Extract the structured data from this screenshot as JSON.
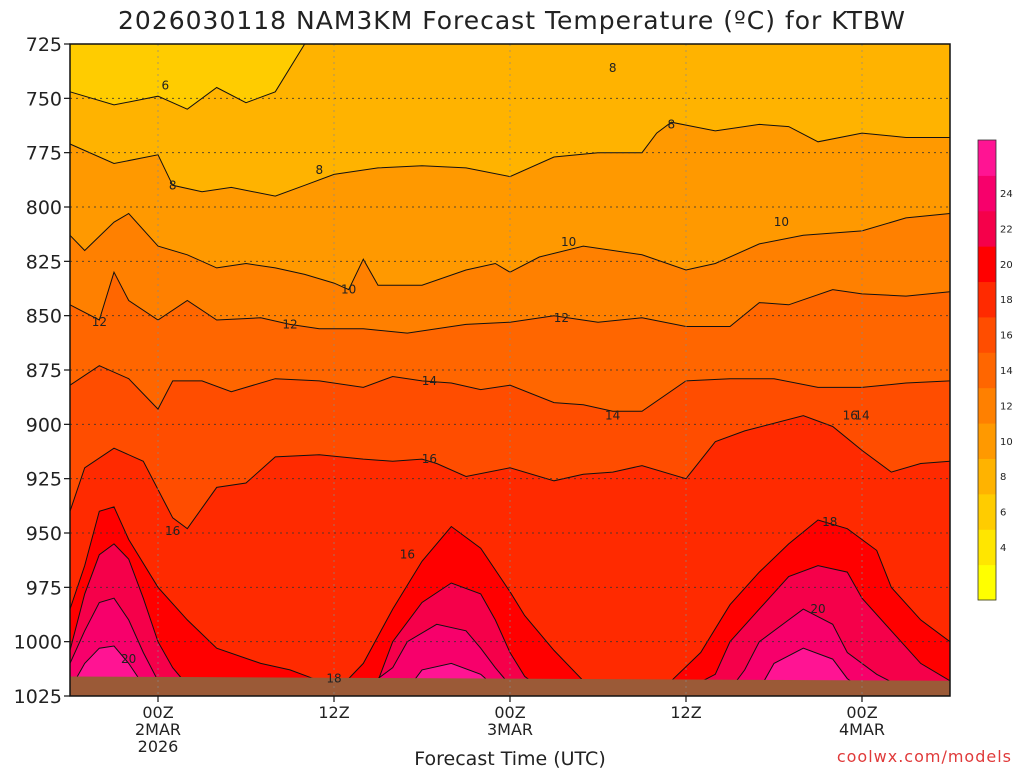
{
  "chart_data": {
    "type": "heatmap",
    "title": "2026030118 NAM3KM Forecast Temperature (ºC) for KTBW",
    "xlabel": "Forecast Time (UTC)",
    "ylabel": "",
    "watermark": "coolwx.com/models",
    "y_axis": {
      "ticks": [
        725,
        750,
        775,
        800,
        825,
        850,
        875,
        900,
        925,
        950,
        975,
        1000,
        1025
      ],
      "ylim": [
        725,
        1025
      ],
      "inverted": true
    },
    "x_axis": {
      "tick_labels": [
        {
          "hour": 0,
          "lines": [
            "00Z",
            "2MAR",
            "2026"
          ]
        },
        {
          "hour": 12,
          "lines": [
            "12Z"
          ]
        },
        {
          "hour": 24,
          "lines": [
            "00Z",
            "3MAR"
          ]
        },
        {
          "hour": 36,
          "lines": [
            "12Z"
          ]
        },
        {
          "hour": 48,
          "lines": [
            "00Z",
            "4MAR"
          ]
        }
      ],
      "xlim": [
        -6,
        54
      ]
    },
    "colorbar": {
      "levels": [
        2,
        4,
        6,
        8,
        10,
        12,
        14,
        16,
        18,
        20,
        22,
        24,
        26
      ],
      "labels": [
        4,
        6,
        8,
        10,
        12,
        14,
        16,
        18,
        20,
        22,
        24
      ],
      "colors": [
        "#ffff00",
        "#ffe600",
        "#ffcc00",
        "#ffb300",
        "#ff9900",
        "#ff8000",
        "#ff6600",
        "#ff4d00",
        "#ff2a00",
        "#ff0000",
        "#f5004a",
        "#f7006b",
        "#ff1493"
      ]
    },
    "contour_labels": [
      {
        "text": "6",
        "hour": 0.5,
        "p": 744
      },
      {
        "text": "8",
        "hour": 1,
        "p": 790
      },
      {
        "text": "8",
        "hour": 11,
        "p": 783
      },
      {
        "text": "8",
        "hour": 31,
        "p": 736
      },
      {
        "text": "8",
        "hour": 35,
        "p": 762
      },
      {
        "text": "10",
        "hour": 13,
        "p": 838
      },
      {
        "text": "10",
        "hour": 28,
        "p": 816
      },
      {
        "text": "10",
        "hour": 42.5,
        "p": 807
      },
      {
        "text": "12",
        "hour": -4,
        "p": 853
      },
      {
        "text": "12",
        "hour": 9,
        "p": 854
      },
      {
        "text": "12",
        "hour": 27.5,
        "p": 851
      },
      {
        "text": "14",
        "hour": 18.5,
        "p": 880
      },
      {
        "text": "14",
        "hour": 31,
        "p": 896
      },
      {
        "text": "14",
        "hour": 48,
        "p": 896
      },
      {
        "text": "16",
        "hour": 1,
        "p": 949
      },
      {
        "text": "16",
        "hour": 18.5,
        "p": 916
      },
      {
        "text": "16",
        "hour": 17,
        "p": 960
      },
      {
        "text": "16",
        "hour": 47.2,
        "p": 896
      },
      {
        "text": "18",
        "hour": 12,
        "p": 1017
      },
      {
        "text": "18",
        "hour": 45.8,
        "p": 945
      },
      {
        "text": "20",
        "hour": -2,
        "p": 1008
      },
      {
        "text": "20",
        "hour": 45,
        "p": 985
      }
    ],
    "bands": [
      {
        "t": 4,
        "pts": [
          [
            -6,
            725
          ],
          [
            54,
            725
          ]
        ]
      },
      {
        "t": 6,
        "pts": [
          [
            -6,
            725
          ],
          [
            54,
            725
          ]
        ]
      },
      {
        "t": 8,
        "pts": [
          [
            -6,
            747
          ],
          [
            -3,
            753
          ],
          [
            0,
            749
          ],
          [
            2,
            755
          ],
          [
            4,
            745
          ],
          [
            6,
            752
          ],
          [
            8,
            747
          ],
          [
            10,
            725
          ],
          [
            14,
            725
          ],
          [
            16,
            725
          ],
          [
            22,
            725
          ],
          [
            28,
            725
          ],
          [
            32,
            725
          ],
          [
            36,
            725
          ],
          [
            40,
            725
          ],
          [
            43,
            725
          ],
          [
            46,
            725
          ],
          [
            50,
            725
          ],
          [
            54,
            725
          ]
        ]
      },
      {
        "t": 10,
        "pts": [
          [
            -6,
            771
          ],
          [
            -3,
            780
          ],
          [
            0,
            776
          ],
          [
            1,
            790
          ],
          [
            3,
            793
          ],
          [
            5,
            791
          ],
          [
            8,
            795
          ],
          [
            10,
            790
          ],
          [
            12,
            785
          ],
          [
            15,
            782
          ],
          [
            18,
            781
          ],
          [
            21,
            782
          ],
          [
            24,
            786
          ],
          [
            27,
            777
          ],
          [
            30,
            775
          ],
          [
            33,
            775
          ],
          [
            34,
            766
          ],
          [
            35,
            761
          ],
          [
            38,
            765
          ],
          [
            41,
            762
          ],
          [
            43,
            763
          ],
          [
            45,
            770
          ],
          [
            48,
            766
          ],
          [
            51,
            768
          ],
          [
            54,
            768
          ]
        ]
      },
      {
        "t": 12,
        "pts": [
          [
            -6,
            813
          ],
          [
            -5,
            820
          ],
          [
            -3,
            807
          ],
          [
            -2,
            803
          ],
          [
            0,
            818
          ],
          [
            2,
            822
          ],
          [
            4,
            828
          ],
          [
            6,
            826
          ],
          [
            8,
            828
          ],
          [
            10,
            831
          ],
          [
            12,
            835
          ],
          [
            13,
            838
          ],
          [
            14,
            824
          ],
          [
            15,
            836
          ],
          [
            18,
            836
          ],
          [
            21,
            829
          ],
          [
            23,
            826
          ],
          [
            24,
            830
          ],
          [
            26,
            823
          ],
          [
            29,
            818
          ],
          [
            33,
            822
          ],
          [
            36,
            829
          ],
          [
            38,
            826
          ],
          [
            41,
            817
          ],
          [
            44,
            813
          ],
          [
            48,
            811
          ],
          [
            51,
            805
          ],
          [
            54,
            803
          ]
        ]
      },
      {
        "t": 14,
        "pts": [
          [
            -6,
            845
          ],
          [
            -4,
            852
          ],
          [
            -3,
            830
          ],
          [
            -2,
            843
          ],
          [
            0,
            852
          ],
          [
            2,
            843
          ],
          [
            4,
            852
          ],
          [
            7,
            851
          ],
          [
            9,
            854
          ],
          [
            11,
            856
          ],
          [
            14,
            856
          ],
          [
            17,
            858
          ],
          [
            21,
            854
          ],
          [
            24,
            853
          ],
          [
            27,
            850
          ],
          [
            30,
            853
          ],
          [
            33,
            851
          ],
          [
            36,
            855
          ],
          [
            39,
            855
          ],
          [
            41,
            844
          ],
          [
            43,
            845
          ],
          [
            46,
            838
          ],
          [
            48,
            840
          ],
          [
            51,
            841
          ],
          [
            54,
            839
          ]
        ]
      },
      {
        "t": 16,
        "pts": [
          [
            -6,
            882
          ],
          [
            -4,
            873
          ],
          [
            -2,
            879
          ],
          [
            0,
            893
          ],
          [
            1,
            880
          ],
          [
            3,
            880
          ],
          [
            5,
            885
          ],
          [
            8,
            879
          ],
          [
            11,
            880
          ],
          [
            14,
            883
          ],
          [
            16,
            878
          ],
          [
            18,
            880
          ],
          [
            20,
            881
          ],
          [
            22,
            884
          ],
          [
            24,
            882
          ],
          [
            27,
            890
          ],
          [
            29,
            891
          ],
          [
            31,
            894
          ],
          [
            33,
            894
          ],
          [
            36,
            880
          ],
          [
            39,
            879
          ],
          [
            42,
            879
          ],
          [
            45,
            883
          ],
          [
            48,
            883
          ],
          [
            51,
            881
          ],
          [
            54,
            880
          ]
        ]
      },
      {
        "t": 18,
        "pts": [
          [
            -6,
            940
          ],
          [
            -5,
            920
          ],
          [
            -3,
            911
          ],
          [
            -1,
            917
          ],
          [
            1,
            943
          ],
          [
            2,
            948
          ],
          [
            4,
            929
          ],
          [
            6,
            927
          ],
          [
            8,
            915
          ],
          [
            11,
            914
          ],
          [
            14,
            916
          ],
          [
            16,
            917
          ],
          [
            18,
            916
          ],
          [
            19,
            918
          ],
          [
            21,
            924
          ],
          [
            24,
            920
          ],
          [
            27,
            926
          ],
          [
            29,
            923
          ],
          [
            31,
            922
          ],
          [
            33,
            919
          ],
          [
            36,
            925
          ],
          [
            38,
            908
          ],
          [
            40,
            903
          ],
          [
            44,
            896
          ],
          [
            46,
            901
          ],
          [
            48,
            912
          ],
          [
            50,
            922
          ],
          [
            52,
            918
          ],
          [
            54,
            917
          ]
        ]
      },
      {
        "t": 20,
        "pts": [
          [
            -6,
            985
          ],
          [
            -5,
            965
          ],
          [
            -4,
            940
          ],
          [
            -3,
            938
          ],
          [
            -2,
            953
          ],
          [
            0,
            975
          ],
          [
            2,
            990
          ],
          [
            4,
            1003
          ],
          [
            7,
            1010
          ],
          [
            9,
            1013
          ],
          [
            11,
            1018
          ],
          [
            13,
            1017
          ],
          [
            14,
            1010
          ],
          [
            16,
            985
          ],
          [
            18,
            963
          ],
          [
            20,
            947
          ],
          [
            22,
            957
          ],
          [
            24,
            977
          ],
          [
            25,
            988
          ],
          [
            27,
            1004
          ],
          [
            29,
            1018
          ],
          [
            31,
            1020
          ],
          [
            33,
            1021
          ],
          [
            35,
            1018
          ],
          [
            37,
            1005
          ],
          [
            39,
            983
          ],
          [
            41,
            968
          ],
          [
            43,
            955
          ],
          [
            45,
            944
          ],
          [
            47,
            948
          ],
          [
            49,
            958
          ],
          [
            50,
            975
          ],
          [
            52,
            990
          ],
          [
            54,
            1000
          ]
        ]
      },
      {
        "t": 22,
        "pts": [
          [
            -6,
            1004
          ],
          [
            -5,
            978
          ],
          [
            -4,
            960
          ],
          [
            -3,
            955
          ],
          [
            -2,
            962
          ],
          [
            -1,
            980
          ],
          [
            0,
            1000
          ],
          [
            1,
            1012
          ],
          [
            2,
            1020
          ],
          [
            4,
            1022
          ],
          [
            6,
            1022
          ],
          [
            10,
            1022
          ],
          [
            14,
            1022
          ],
          [
            15,
            1018
          ],
          [
            16,
            1000
          ],
          [
            18,
            982
          ],
          [
            20,
            973
          ],
          [
            22,
            978
          ],
          [
            23,
            990
          ],
          [
            24,
            1005
          ],
          [
            25,
            1016
          ],
          [
            26,
            1021
          ],
          [
            28,
            1022
          ],
          [
            36,
            1022
          ],
          [
            38,
            1015
          ],
          [
            39,
            1000
          ],
          [
            41,
            985
          ],
          [
            43,
            970
          ],
          [
            45,
            965
          ],
          [
            47,
            968
          ],
          [
            48,
            980
          ],
          [
            50,
            995
          ],
          [
            52,
            1010
          ],
          [
            54,
            1018
          ]
        ]
      },
      {
        "t": 24,
        "pts": [
          [
            -6,
            1010
          ],
          [
            -5,
            995
          ],
          [
            -4,
            982
          ],
          [
            -3,
            980
          ],
          [
            -2,
            990
          ],
          [
            -1,
            1005
          ],
          [
            0,
            1018
          ],
          [
            1,
            1022
          ],
          [
            14,
            1022
          ],
          [
            16,
            1012
          ],
          [
            17,
            1000
          ],
          [
            19,
            992
          ],
          [
            21,
            995
          ],
          [
            22,
            1003
          ],
          [
            23,
            1012
          ],
          [
            24,
            1020
          ],
          [
            25,
            1022
          ],
          [
            39,
            1022
          ],
          [
            40,
            1013
          ],
          [
            41,
            1000
          ],
          [
            43,
            990
          ],
          [
            44,
            985
          ],
          [
            46,
            992
          ],
          [
            47,
            1005
          ],
          [
            49,
            1015
          ],
          [
            51,
            1022
          ],
          [
            54,
            1022
          ]
        ]
      },
      {
        "t": 26,
        "pts": [
          [
            -6,
            1022
          ],
          [
            -5,
            1010
          ],
          [
            -4,
            1003
          ],
          [
            -3,
            1002
          ],
          [
            -2,
            1010
          ],
          [
            -1,
            1020
          ],
          [
            0,
            1022
          ],
          [
            17,
            1022
          ],
          [
            18,
            1013
          ],
          [
            20,
            1010
          ],
          [
            22,
            1015
          ],
          [
            23,
            1021
          ],
          [
            24,
            1022
          ],
          [
            41,
            1022
          ],
          [
            42,
            1010
          ],
          [
            44,
            1003
          ],
          [
            46,
            1008
          ],
          [
            47,
            1017
          ],
          [
            48,
            1022
          ],
          [
            54,
            1022
          ]
        ]
      }
    ]
  }
}
